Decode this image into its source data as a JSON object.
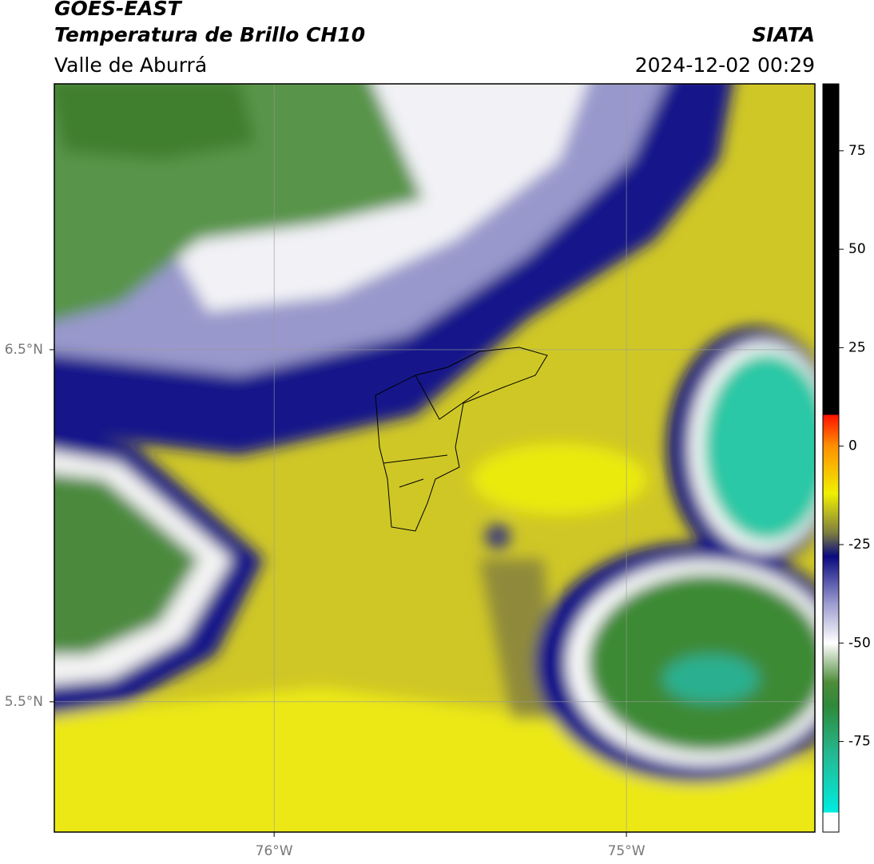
{
  "header": {
    "title": "GOES-EAST",
    "subtitle": "Temperatura de Brillo CH10",
    "region": "Valle de Aburrá",
    "source": "SIATA",
    "datetime": "2024-12-02 00:29"
  },
  "map": {
    "xlim": [
      -76.624,
      -74.465
    ],
    "ylim": [
      5.13,
      7.255
    ],
    "xticks": [
      {
        "value": -76,
        "label": "76°W"
      },
      {
        "value": -75,
        "label": "75°W"
      }
    ],
    "yticks": [
      {
        "value": 6.5,
        "label": "6.5°N"
      },
      {
        "value": 5.5,
        "label": "5.5°N"
      }
    ]
  },
  "colorbar": {
    "ylim": [
      -98,
      92
    ],
    "yticks": [
      75,
      50,
      25,
      0,
      -25,
      -50,
      -75
    ],
    "colormap": [
      {
        "value": -98,
        "color": "#ffffff"
      },
      {
        "value": -93,
        "color": "#ffffff"
      },
      {
        "value": -93,
        "color": "#00ece0"
      },
      {
        "value": -78,
        "color": "#25b890"
      },
      {
        "value": -66,
        "color": "#2e8a3a"
      },
      {
        "value": -60,
        "color": "#4e8c3a"
      },
      {
        "value": -50,
        "color": "#ffffff"
      },
      {
        "value": -40,
        "color": "#9c9cd0"
      },
      {
        "value": -28,
        "color": "#0a0a80"
      },
      {
        "value": -22,
        "color": "#7e7e40"
      },
      {
        "value": -12,
        "color": "#f0f000"
      },
      {
        "value": 0,
        "color": "#ff9000"
      },
      {
        "value": 8,
        "color": "#ff1000"
      },
      {
        "value": 8,
        "color": "#000000"
      },
      {
        "value": 92,
        "color": "#000000"
      }
    ]
  }
}
